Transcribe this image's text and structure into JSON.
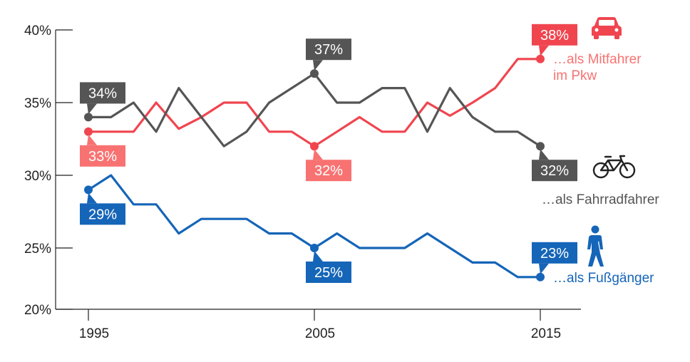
{
  "chart_data": {
    "type": "line",
    "x_ticks": [
      "1995",
      "2005",
      "2015"
    ],
    "y_ticks": [
      "20%",
      "25%",
      "30%",
      "35%",
      "40%"
    ],
    "ylim": [
      20,
      40
    ],
    "xlim": [
      1994,
      2016
    ],
    "grid": false,
    "x": [
      1995,
      1996,
      1997,
      1998,
      1999,
      2000,
      2001,
      2002,
      2003,
      2004,
      2005,
      2006,
      2007,
      2008,
      2009,
      2010,
      2011,
      2012,
      2013,
      2014,
      2015
    ],
    "series": [
      {
        "key": "mitfahrer",
        "name_lines": [
          "…als Mitfahrer",
          "im Pkw"
        ],
        "color": "#f0454f",
        "label_color": "#f87272",
        "icon": "car-icon",
        "values": [
          33,
          33,
          33,
          35,
          33.2,
          34,
          35,
          35,
          33,
          33,
          32,
          33,
          34,
          33,
          33,
          35,
          34.1,
          35,
          36,
          38,
          38
        ]
      },
      {
        "key": "fahrradfahrer",
        "name_lines": [
          "…als Fahrradfahrer"
        ],
        "color": "#555555",
        "label_color": "#555555",
        "icon": "bicycle-icon",
        "values": [
          34,
          34,
          35,
          33,
          36,
          34,
          32,
          33,
          35,
          36,
          37,
          35,
          35,
          36,
          36,
          33,
          36,
          34,
          33,
          33,
          32
        ]
      },
      {
        "key": "fussgaenger",
        "name_lines": [
          "…als Fußgänger"
        ],
        "color": "#1565b8",
        "label_color": "#1565b8",
        "icon": "pedestrian-icon",
        "values": [
          29,
          30,
          28,
          28,
          26,
          27,
          27,
          27,
          26,
          26,
          25,
          26,
          25,
          25,
          25,
          26,
          25,
          24,
          24,
          23,
          23
        ]
      }
    ],
    "callouts": [
      {
        "series": "fahrradfahrer",
        "year": 1995,
        "text": "34%",
        "side": "above",
        "color": "#555555"
      },
      {
        "series": "mitfahrer",
        "year": 1995,
        "text": "33%",
        "side": "below",
        "color": "#f87272"
      },
      {
        "series": "fussgaenger",
        "year": 1995,
        "text": "29%",
        "side": "below",
        "color": "#1565b8"
      },
      {
        "series": "fahrradfahrer",
        "year": 2005,
        "text": "37%",
        "side": "above",
        "color": "#555555"
      },
      {
        "series": "mitfahrer",
        "year": 2005,
        "text": "32%",
        "side": "below",
        "color": "#f87272"
      },
      {
        "series": "fussgaenger",
        "year": 2005,
        "text": "25%",
        "side": "below",
        "color": "#1565b8"
      },
      {
        "series": "mitfahrer",
        "year": 2015,
        "text": "38%",
        "side": "above",
        "color": "#f0454f"
      },
      {
        "series": "fahrradfahrer",
        "year": 2015,
        "text": "32%",
        "side": "below",
        "color": "#555555"
      },
      {
        "series": "fussgaenger",
        "year": 2015,
        "text": "23%",
        "side": "above",
        "color": "#1565b8"
      }
    ]
  }
}
